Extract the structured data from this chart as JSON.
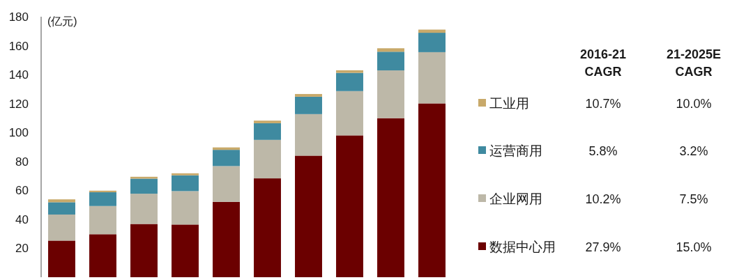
{
  "chart_data": {
    "type": "bar",
    "stacked": true,
    "ylabel": "(亿元)",
    "categories": [
      null,
      null,
      null,
      null,
      null,
      null,
      null,
      null,
      null,
      null
    ],
    "series": [
      {
        "name": "数据中心用",
        "color": "#6b0000",
        "values": [
          25.3,
          29.7,
          36.8,
          36.4,
          52.1,
          68.3,
          84.0,
          98.0,
          109.9,
          120.1
        ]
      },
      {
        "name": "企业网用",
        "color": "#bdb8a8",
        "values": [
          18.0,
          19.5,
          20.9,
          23.1,
          24.7,
          26.6,
          28.7,
          30.6,
          33.0,
          35.4
        ]
      },
      {
        "name": "运营商用",
        "color": "#3f8aa0",
        "values": [
          8.5,
          9.5,
          10.4,
          10.9,
          11.2,
          11.5,
          12.0,
          12.6,
          12.9,
          13.4
        ]
      },
      {
        "name": "工业用",
        "color": "#c8a96a",
        "values": [
          2.0,
          1.1,
          1.3,
          1.4,
          1.7,
          1.8,
          1.9,
          1.8,
          2.4,
          2.2
        ]
      }
    ],
    "ylim": [
      0,
      180
    ],
    "yticks": [
      20,
      40,
      60,
      80,
      100,
      120,
      140,
      160,
      180
    ],
    "tick_labels": "y",
    "grid": false,
    "legend": "right",
    "annotations": [
      "2016-21\nCAGR",
      "21-2025E\nCAGR",
      "10.7%",
      "10.0%",
      "5.8%",
      "3.2%",
      "10.2%",
      "7.5%",
      "27.9%",
      "15.0%"
    ]
  }
}
